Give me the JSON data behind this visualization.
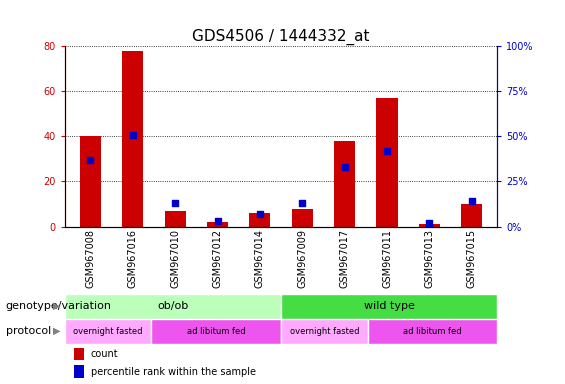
{
  "title": "GDS4506 / 1444332_at",
  "samples": [
    "GSM967008",
    "GSM967016",
    "GSM967010",
    "GSM967012",
    "GSM967014",
    "GSM967009",
    "GSM967017",
    "GSM967011",
    "GSM967013",
    "GSM967015"
  ],
  "count_values": [
    40,
    78,
    7,
    2,
    6,
    8,
    38,
    57,
    1,
    10
  ],
  "percentile_values": [
    37,
    51,
    13,
    3,
    7,
    13,
    33,
    42,
    2,
    14
  ],
  "left_ylim": [
    0,
    80
  ],
  "right_ylim": [
    0,
    100
  ],
  "left_yticks": [
    0,
    20,
    40,
    60,
    80
  ],
  "right_yticks": [
    0,
    25,
    50,
    75,
    100
  ],
  "right_yticklabels": [
    "0%",
    "25%",
    "50%",
    "75%",
    "100%"
  ],
  "bar_color": "#CC0000",
  "dot_color": "#0000CC",
  "genotype_groups": [
    {
      "label": "ob/ob",
      "start": 0,
      "end": 5,
      "color": "#BBFFBB"
    },
    {
      "label": "wild type",
      "start": 5,
      "end": 10,
      "color": "#44DD44"
    }
  ],
  "protocol_groups": [
    {
      "label": "overnight fasted",
      "start": 0,
      "end": 2,
      "color": "#FFAAFF"
    },
    {
      "label": "ad libitum fed",
      "start": 2,
      "end": 5,
      "color": "#EE55EE"
    },
    {
      "label": "overnight fasted",
      "start": 5,
      "end": 7,
      "color": "#FFAAFF"
    },
    {
      "label": "ad libitum fed",
      "start": 7,
      "end": 10,
      "color": "#EE55EE"
    }
  ],
  "legend_items": [
    {
      "label": "count",
      "color": "#CC0000"
    },
    {
      "label": "percentile rank within the sample",
      "color": "#0000CC"
    }
  ],
  "title_fontsize": 11,
  "tick_fontsize": 7,
  "label_fontsize": 8,
  "annotation_fontsize": 8
}
